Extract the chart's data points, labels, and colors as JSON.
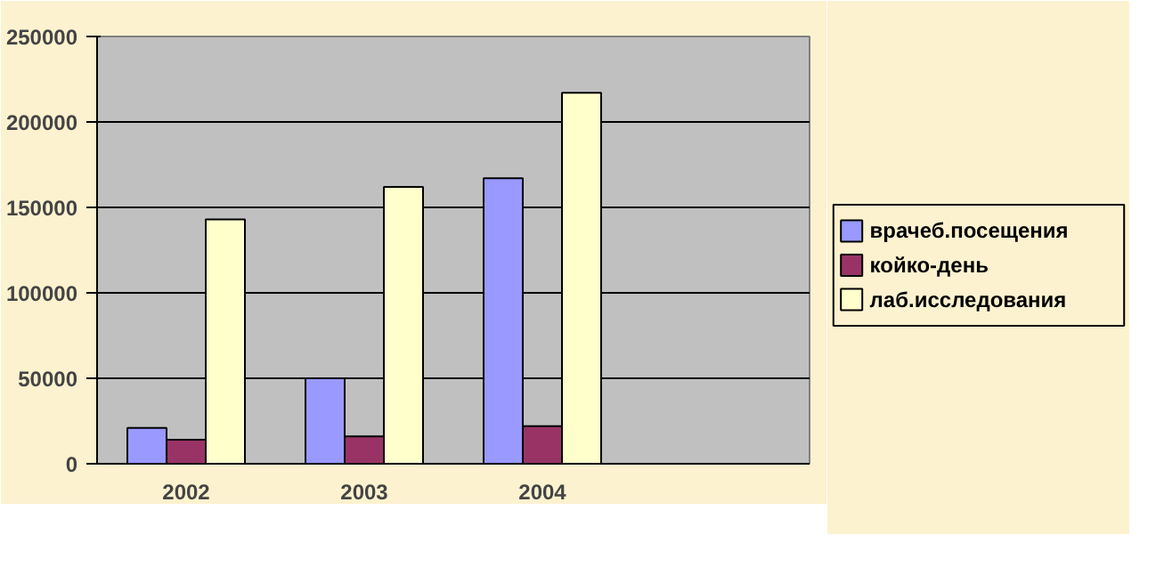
{
  "chart_data": {
    "type": "bar",
    "categories": [
      "2002",
      "2003",
      "2004",
      null
    ],
    "series": [
      {
        "name": "врачеб.посещения",
        "color": "#9999ff",
        "values": [
          21000,
          50000,
          167000,
          null
        ]
      },
      {
        "name": "койко-день",
        "color": "#993366",
        "values": [
          14000,
          16000,
          22000,
          null
        ]
      },
      {
        "name": "лаб.исследования",
        "color": "#ffffcc",
        "values": [
          143000,
          162000,
          217000,
          null
        ]
      }
    ],
    "ylim": [
      0,
      250000
    ],
    "yticks": [
      0,
      50000,
      100000,
      150000,
      200000,
      250000
    ],
    "grid": "y",
    "legend": "right"
  }
}
